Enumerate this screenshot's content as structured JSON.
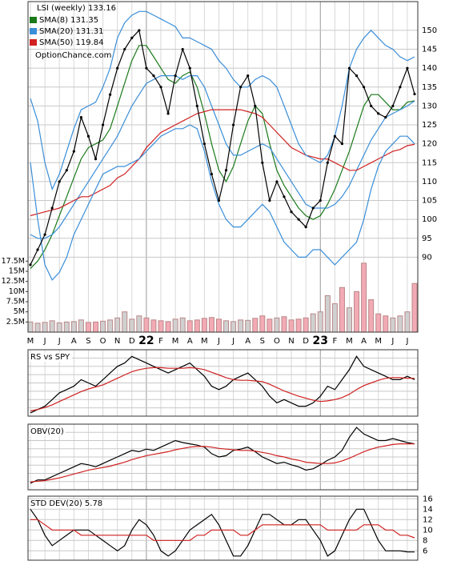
{
  "chart_data": [
    {
      "type": "stock",
      "title": "LSI (weekly) 133.16",
      "watermark": "OptionChance.com",
      "categories": [
        "M",
        null,
        "J",
        null,
        "J",
        null,
        "A",
        null,
        "S",
        null,
        "O",
        null,
        "N",
        null,
        "D",
        null,
        "22",
        null,
        "F",
        null,
        "M",
        null,
        "A",
        null,
        "M",
        null,
        "J",
        null,
        "J",
        null,
        "A",
        null,
        "S",
        null,
        "O",
        null,
        "N",
        null,
        "D",
        null,
        "23",
        null,
        "F",
        null,
        "M",
        null,
        "A",
        null,
        "M",
        null,
        "J",
        null,
        "J",
        null
      ],
      "values": [
        88,
        92,
        96,
        103,
        110,
        113,
        118,
        127,
        122,
        116,
        125,
        133,
        140,
        145,
        148,
        150,
        140,
        138,
        135,
        128,
        138,
        145,
        140,
        130,
        120,
        112,
        105,
        113,
        125,
        135,
        138,
        130,
        115,
        105,
        110,
        106,
        102,
        100,
        98,
        103,
        105,
        115,
        122,
        120,
        140,
        138,
        135,
        130,
        128,
        127,
        130,
        135,
        140,
        133.16
      ],
      "color": "#000000",
      "series": [
        {
          "name": "SMA(8) 131.35",
          "color": "#1a7a1a",
          "values": [
            87,
            89,
            92,
            96,
            101,
            106,
            111,
            116,
            119,
            120,
            121,
            124,
            130,
            136,
            142,
            146,
            146,
            143,
            140,
            137,
            136,
            138,
            139,
            135,
            128,
            120,
            113,
            110,
            114,
            120,
            126,
            130,
            128,
            120,
            113,
            109,
            106,
            103,
            101,
            100,
            101,
            104,
            108,
            113,
            118,
            124,
            130,
            133,
            133,
            131,
            129,
            129,
            131,
            131.35
          ]
        },
        {
          "name": "SMA(20) 131.31",
          "color": "#3a8ed8",
          "values": [
            96,
            95,
            95,
            96,
            98,
            101,
            104,
            107,
            110,
            113,
            116,
            119,
            122,
            126,
            130,
            133,
            136,
            137,
            138,
            138,
            138,
            137,
            138,
            138,
            135,
            130,
            125,
            120,
            117,
            117,
            118,
            119,
            120,
            119,
            116,
            113,
            110,
            107,
            104,
            103,
            103,
            103,
            104,
            106,
            109,
            113,
            117,
            121,
            124,
            127,
            128,
            129,
            130,
            131.31
          ]
        },
        {
          "name": "SMA(50) 119.84",
          "color": "#d02020",
          "values": [
            101,
            101.5,
            102,
            102.5,
            103,
            104,
            105,
            106,
            106,
            107,
            108,
            109,
            111,
            112,
            114,
            116,
            119,
            121,
            123,
            124,
            125,
            126,
            127,
            128,
            128.5,
            129,
            129,
            129,
            129,
            129,
            128.5,
            128,
            127,
            125,
            123,
            121,
            119,
            118,
            117,
            116.5,
            116,
            116,
            115,
            114,
            113,
            113,
            114,
            115,
            116,
            117,
            118,
            118.5,
            119.5,
            119.84
          ]
        },
        {
          "color": "#3a8ed8",
          "values": [
            132,
            126,
            115,
            108,
            112,
            118,
            124,
            129,
            130,
            131,
            135,
            140,
            148,
            152,
            154,
            155,
            155,
            154,
            153,
            152,
            151,
            148,
            148,
            147,
            146,
            145,
            142,
            140,
            137,
            135,
            135,
            137,
            138,
            137,
            135,
            130,
            125,
            120,
            117,
            116,
            115,
            117,
            122,
            130,
            140,
            145,
            148,
            150,
            148,
            146,
            145,
            143,
            142,
            143
          ]
        },
        {
          "color": "#3a8ed8",
          "values": [
            115,
            100,
            88,
            84,
            86,
            90,
            96,
            100,
            104,
            108,
            112,
            113,
            114,
            114,
            115,
            116,
            118,
            120,
            122,
            123,
            124,
            124,
            125,
            124,
            118,
            110,
            104,
            100,
            98,
            98,
            100,
            102,
            104,
            102,
            98,
            94,
            92,
            90,
            90,
            92,
            92,
            90,
            88,
            90,
            92,
            94,
            100,
            108,
            114,
            118,
            120,
            122,
            122,
            120
          ]
        }
      ],
      "ylim": [
        70.2,
        157.6
      ],
      "yticks": [
        90,
        95,
        100,
        105,
        110,
        115,
        120,
        125,
        130,
        135,
        140,
        145,
        150
      ],
      "grid": true,
      "volume": [
        2.5,
        2.2,
        2.4,
        2.8,
        2.3,
        2.5,
        2.6,
        3,
        2.4,
        2.5,
        2.7,
        3,
        3.5,
        5,
        3.2,
        4,
        3.5,
        3,
        2.8,
        2.6,
        3.2,
        3.5,
        2.8,
        3,
        3.4,
        3.6,
        3.2,
        2.8,
        2.6,
        3,
        2.9,
        3.4,
        4,
        3.2,
        3.5,
        3.8,
        3,
        3.2,
        3.5,
        4.5,
        5,
        9,
        7,
        11,
        6,
        10,
        17,
        8,
        4.5,
        4,
        3.5,
        4,
        5,
        12
      ],
      "volume_up_color": "#d0d0d0",
      "volume_down_color": "#f2aab4",
      "y2lim": [
        0,
        81.5
      ],
      "y2ticks": [
        {
          "value": 2.5,
          "label": "2.5M"
        },
        {
          "value": 5,
          "label": "5M"
        },
        {
          "value": 7.5,
          "label": "7.5M"
        },
        {
          "value": 10,
          "label": "10M"
        },
        {
          "value": 12.5,
          "label": "12.5M"
        },
        {
          "value": 15,
          "label": "15M"
        },
        {
          "value": 17.5,
          "label": "17.5M"
        }
      ]
    },
    {
      "type": "line",
      "title": "RS vs SPY",
      "ylim": [
        0,
        100
      ],
      "series": [
        {
          "color": "#000000",
          "values": [
            5,
            10,
            15,
            25,
            35,
            40,
            45,
            55,
            50,
            45,
            55,
            65,
            75,
            80,
            90,
            85,
            80,
            75,
            70,
            65,
            70,
            75,
            80,
            70,
            60,
            45,
            40,
            45,
            55,
            60,
            65,
            55,
            45,
            30,
            20,
            25,
            20,
            15,
            15,
            20,
            30,
            45,
            40,
            55,
            70,
            90,
            75,
            70,
            65,
            60,
            55,
            55,
            60,
            55
          ]
        },
        {
          "color": "#d02020",
          "values": [
            8,
            10,
            13,
            17,
            22,
            27,
            32,
            37,
            41,
            44,
            47,
            52,
            57,
            62,
            67,
            70,
            72,
            73,
            73,
            72,
            72,
            72,
            73,
            72,
            70,
            66,
            62,
            58,
            55,
            54,
            54,
            53,
            52,
            48,
            43,
            38,
            34,
            30,
            27,
            24,
            22,
            23,
            25,
            28,
            33,
            40,
            46,
            50,
            54,
            57,
            58,
            58,
            57,
            57
          ]
        }
      ]
    },
    {
      "type": "line",
      "title": "OBV(20)",
      "ylim": [
        0,
        100
      ],
      "series": [
        {
          "color": "#000000",
          "values": [
            10,
            15,
            15,
            20,
            25,
            30,
            35,
            40,
            38,
            35,
            40,
            45,
            50,
            55,
            60,
            58,
            62,
            60,
            65,
            70,
            75,
            72,
            70,
            68,
            65,
            55,
            50,
            52,
            60,
            62,
            65,
            58,
            50,
            45,
            40,
            42,
            38,
            35,
            30,
            32,
            38,
            45,
            50,
            60,
            80,
            95,
            85,
            80,
            75,
            75,
            78,
            75,
            72,
            70
          ]
        },
        {
          "color": "#d02020",
          "values": [
            12,
            13,
            14,
            16,
            18,
            21,
            24,
            27,
            30,
            32,
            34,
            36,
            39,
            42,
            46,
            49,
            52,
            54,
            56,
            58,
            61,
            63,
            65,
            66,
            66,
            65,
            63,
            62,
            61,
            60,
            60,
            59,
            57,
            55,
            52,
            50,
            47,
            45,
            42,
            41,
            40,
            40,
            41,
            44,
            48,
            53,
            58,
            62,
            65,
            67,
            69,
            70,
            70,
            70
          ]
        }
      ]
    },
    {
      "type": "line",
      "title": "STD DEV(20) 5.78",
      "ylim": [
        4.2,
        16.5
      ],
      "yticks": [
        6,
        8,
        10,
        12,
        14,
        16
      ],
      "grid": true,
      "series": [
        {
          "color": "#000000",
          "values": [
            14,
            12,
            9,
            7,
            8,
            9,
            10,
            10,
            10,
            9,
            8,
            7,
            6,
            7,
            10,
            12,
            11,
            9,
            6,
            5,
            6,
            8,
            10,
            11,
            12,
            13,
            11,
            8,
            5,
            5,
            7,
            10,
            13,
            13,
            12,
            11,
            11,
            12,
            12,
            10,
            8,
            5,
            6,
            9,
            12,
            14,
            14,
            11,
            8,
            6,
            6,
            6,
            5.8,
            5.78
          ]
        },
        {
          "color": "#d02020",
          "values": [
            12,
            12,
            11,
            10,
            10,
            10,
            10,
            9,
            9,
            9,
            9,
            9,
            9,
            9,
            9,
            9,
            9,
            8,
            8,
            8,
            8,
            8,
            8,
            9,
            9,
            10,
            10,
            10,
            10,
            9,
            9,
            10,
            11,
            11,
            11,
            11,
            11,
            11,
            11,
            11,
            11,
            10,
            10,
            10,
            10,
            10,
            11,
            11,
            11,
            10,
            10,
            9,
            9,
            8.5
          ]
        }
      ]
    }
  ]
}
